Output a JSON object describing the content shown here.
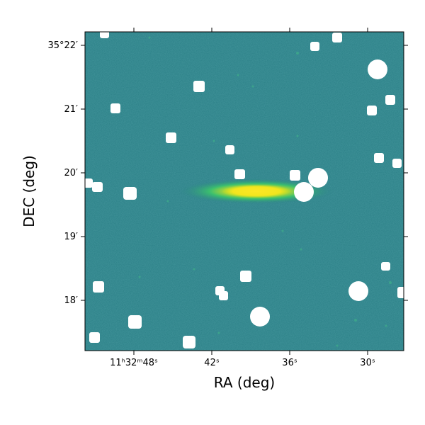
{
  "figure": {
    "xlabel": "RA (deg)",
    "ylabel": "DEC (deg)",
    "x_ticks": [
      {
        "label": "11ʰ32ᵐ48ˢ"
      },
      {
        "label": "42ˢ"
      },
      {
        "label": "36ˢ"
      },
      {
        "label": "30ˢ"
      }
    ],
    "y_ticks": [
      {
        "label": "35°22′"
      },
      {
        "label": "21′"
      },
      {
        "label": "20′"
      },
      {
        "label": "19′"
      },
      {
        "label": "18′"
      }
    ],
    "colors": {
      "background": "#2a7f86",
      "galaxy_core": "#f2e51e",
      "galaxy_halo": "#3bbf6e",
      "mask": "#ffffff",
      "frame": "#000000"
    },
    "image_content": "edge-on galaxy with masked star sources"
  }
}
